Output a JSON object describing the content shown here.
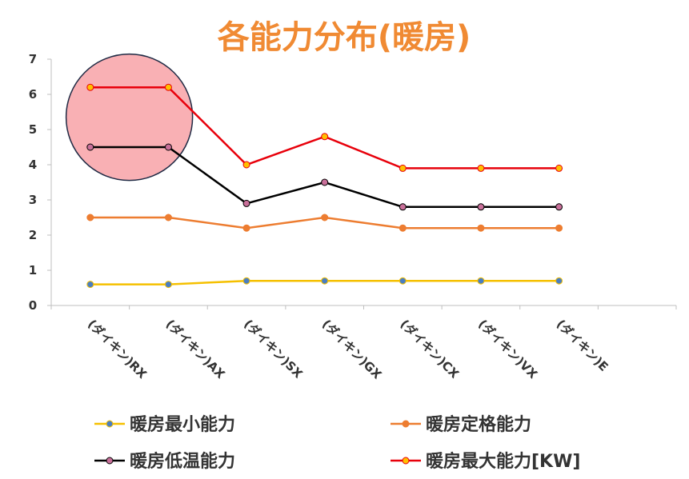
{
  "chart_data": {
    "type": "line",
    "title": "各能力分布(暖房)",
    "categories": [
      "(ダイキン)RX",
      "(ダイキン)AX",
      "(ダイキン)SX",
      "(ダイキン)GX",
      "(ダイキン)CX",
      "(ダイキン)VX",
      "(ダイキン)E"
    ],
    "ylim": [
      0,
      7
    ],
    "yticks": [
      0,
      1,
      2,
      3,
      4,
      5,
      6,
      7
    ],
    "grid": false,
    "legend_placement": "bottom",
    "series": [
      {
        "name": "暖房最小能力",
        "values": [
          0.6,
          0.6,
          0.7,
          0.7,
          0.7,
          0.7,
          0.7
        ],
        "color": "#f5c000",
        "marker_fill": "#4a7ec2"
      },
      {
        "name": "暖房定格能力",
        "values": [
          2.5,
          2.5,
          2.2,
          2.5,
          2.2,
          2.2,
          2.2
        ],
        "color": "#ed7d31",
        "marker_fill": "#ed7d31"
      },
      {
        "name": "暖房低温能力",
        "values": [
          4.5,
          4.5,
          2.9,
          3.5,
          2.8,
          2.8,
          2.8
        ],
        "color": "#000000",
        "marker_fill": "#c9709a"
      },
      {
        "name": "暖房最大能力[KW]",
        "values": [
          6.2,
          6.2,
          4.0,
          4.8,
          3.9,
          3.9,
          3.9
        ],
        "color": "#e8000b",
        "marker_fill": "#ffc000"
      }
    ],
    "annotation": {
      "type": "circle-highlight",
      "fill": "#f9b0b4",
      "stroke": "#1f2a44"
    }
  }
}
